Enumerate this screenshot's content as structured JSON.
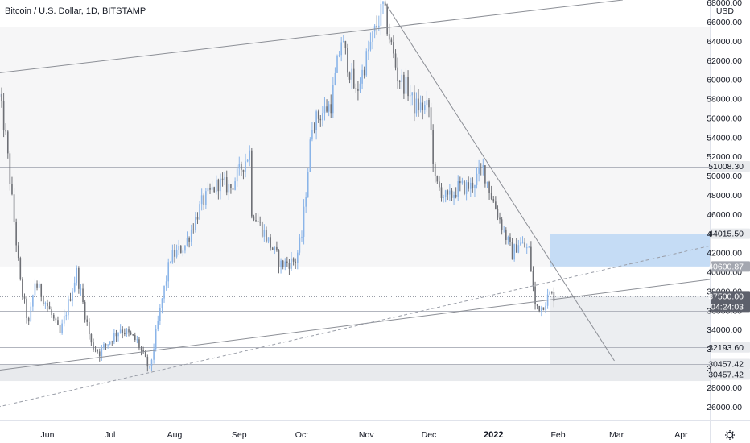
{
  "chart_data": {
    "type": "candlestick",
    "title": "Bitcoin / U.S. Dollar, 1D, BITSTAMP",
    "currency_label": "USD",
    "ylim": [
      24600,
      68300
    ],
    "y_ticks": [
      26000,
      28000,
      30000,
      32000,
      34000,
      36000,
      38000,
      40000,
      42000,
      44000,
      46000,
      48000,
      50000,
      52000,
      54000,
      56000,
      58000,
      60000,
      62000,
      64000,
      66000,
      68000
    ],
    "x_labels": [
      {
        "label": "Jun",
        "date": "2021-06-01",
        "bold": false
      },
      {
        "label": "Jul",
        "date": "2021-07-01",
        "bold": false
      },
      {
        "label": "Aug",
        "date": "2021-08-01",
        "bold": false
      },
      {
        "label": "Sep",
        "date": "2021-09-01",
        "bold": false
      },
      {
        "label": "Oct",
        "date": "2021-10-01",
        "bold": false
      },
      {
        "label": "Nov",
        "date": "2021-11-01",
        "bold": false
      },
      {
        "label": "Dec",
        "date": "2021-12-01",
        "bold": false
      },
      {
        "label": "2022",
        "date": "2022-01-01",
        "bold": true
      },
      {
        "label": "Feb",
        "date": "2022-02-01",
        "bold": false
      },
      {
        "label": "Mar",
        "date": "2022-03-01",
        "bold": false
      },
      {
        "label": "Apr",
        "date": "2022-04-01",
        "bold": false
      }
    ],
    "price_tags": [
      {
        "label": "51008.30",
        "value": 51008.3,
        "style": "light"
      },
      {
        "label": "44015.50",
        "value": 44015.5,
        "style": "light"
      },
      {
        "label": "40600.87",
        "value": 40600.87,
        "style": "gray"
      },
      {
        "label": "37500.00",
        "value": 37500,
        "style": "dark",
        "countdown": "04:24:03"
      },
      {
        "label": "32193.60",
        "value": 32193.6,
        "style": "light"
      },
      {
        "label": "30457.42",
        "value": 30457.42,
        "style": "light"
      },
      {
        "label": "30457.42",
        "value": 30457.42,
        "style": "light"
      }
    ],
    "horizontal_levels": [
      65500,
      51008.3,
      40600.87,
      37500,
      36000,
      32193.6,
      30457.42
    ],
    "zones": [
      {
        "name": "upper-range-zone",
        "from_date": "2021-05-08",
        "to_date": "2022-04-20",
        "low": 40600.87,
        "high": 65500,
        "color": "#f6f6f7"
      },
      {
        "name": "take-profit-zone",
        "from_date": "2022-01-28",
        "to_date": "2022-04-20",
        "low": 40600.87,
        "high": 44015.5,
        "color": "#c5dcf5"
      },
      {
        "name": "stop-zone",
        "from_date": "2022-01-28",
        "to_date": "2022-04-20",
        "low": 30457.42,
        "high": 37500,
        "color": "#eceef1"
      },
      {
        "name": "support-zone",
        "from_date": "2021-05-08",
        "to_date": "2022-04-20",
        "low": 28700,
        "high": 30457.42,
        "color": "#e8eaed"
      }
    ],
    "trendlines": [
      {
        "name": "upper-channel-line",
        "from": [
          "2021-05-08",
          60700
        ],
        "to": [
          "2022-03-04",
          68300
        ],
        "style": "solid"
      },
      {
        "name": "lower-channel-line",
        "from": [
          "2021-05-08",
          29800
        ],
        "to": [
          "2022-04-20",
          39400
        ],
        "style": "solid"
      },
      {
        "name": "dashed-trendline",
        "from": [
          "2021-05-08",
          26000
        ],
        "to": [
          "2022-04-20",
          43000
        ],
        "style": "dashed"
      },
      {
        "name": "descending-trendline",
        "from": [
          "2021-11-10",
          68000
        ],
        "to": [
          "2022-02-28",
          30800
        ],
        "style": "solid"
      }
    ],
    "anchors": [
      [
        "2021-05-09",
        58200
      ],
      [
        "2021-05-12",
        54000
      ],
      [
        "2021-05-19",
        38800
      ],
      [
        "2021-05-23",
        34500
      ],
      [
        "2021-05-26",
        39000
      ],
      [
        "2021-06-01",
        36500
      ],
      [
        "2021-06-07",
        33500
      ],
      [
        "2021-06-15",
        40000
      ],
      [
        "2021-06-22",
        32500
      ],
      [
        "2021-06-26",
        31700
      ],
      [
        "2021-07-06",
        34200
      ],
      [
        "2021-07-14",
        32800
      ],
      [
        "2021-07-20",
        29800
      ],
      [
        "2021-07-26",
        37200
      ],
      [
        "2021-07-30",
        41500
      ],
      [
        "2021-08-06",
        42800
      ],
      [
        "2021-08-14",
        47200
      ],
      [
        "2021-08-22",
        49300
      ],
      [
        "2021-08-28",
        48800
      ],
      [
        "2021-09-06",
        52500
      ],
      [
        "2021-09-07",
        46500
      ],
      [
        "2021-09-21",
        40800
      ],
      [
        "2021-09-28",
        41200
      ],
      [
        "2021-10-01",
        43800
      ],
      [
        "2021-10-06",
        55500
      ],
      [
        "2021-10-15",
        57500
      ],
      [
        "2021-10-20",
        64200
      ],
      [
        "2021-10-27",
        58500
      ],
      [
        "2021-11-02",
        63000
      ],
      [
        "2021-11-09",
        67600
      ],
      [
        "2021-11-12",
        64500
      ],
      [
        "2021-11-16",
        60400
      ],
      [
        "2021-11-21",
        59000
      ],
      [
        "2021-11-24",
        57300
      ],
      [
        "2021-12-01",
        57100
      ],
      [
        "2021-12-04",
        49300
      ],
      [
        "2021-12-10",
        47500
      ],
      [
        "2021-12-15",
        48800
      ],
      [
        "2021-12-21",
        48900
      ],
      [
        "2021-12-27",
        50800
      ],
      [
        "2022-01-01",
        47300
      ],
      [
        "2022-01-10",
        41900
      ],
      [
        "2022-01-13",
        43100
      ],
      [
        "2022-01-18",
        42300
      ],
      [
        "2022-01-21",
        36500
      ],
      [
        "2022-01-24",
        36400
      ],
      [
        "2022-01-28",
        37700
      ],
      [
        "2022-01-30",
        37500
      ]
    ]
  }
}
